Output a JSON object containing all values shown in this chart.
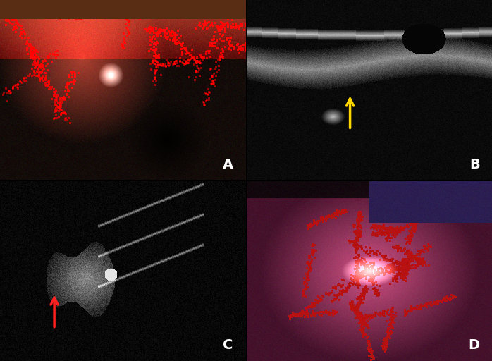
{
  "figsize": [
    6.98,
    5.12
  ],
  "dpi": 100,
  "panels": [
    "A",
    "B",
    "C",
    "D"
  ],
  "label_color": "white",
  "label_fontsize": 14,
  "label_fontweight": "bold",
  "arrow_B_color": "#FFD700",
  "arrow_C_color": "#FF2020",
  "divider_color": "white",
  "divider_linewidth": 2
}
